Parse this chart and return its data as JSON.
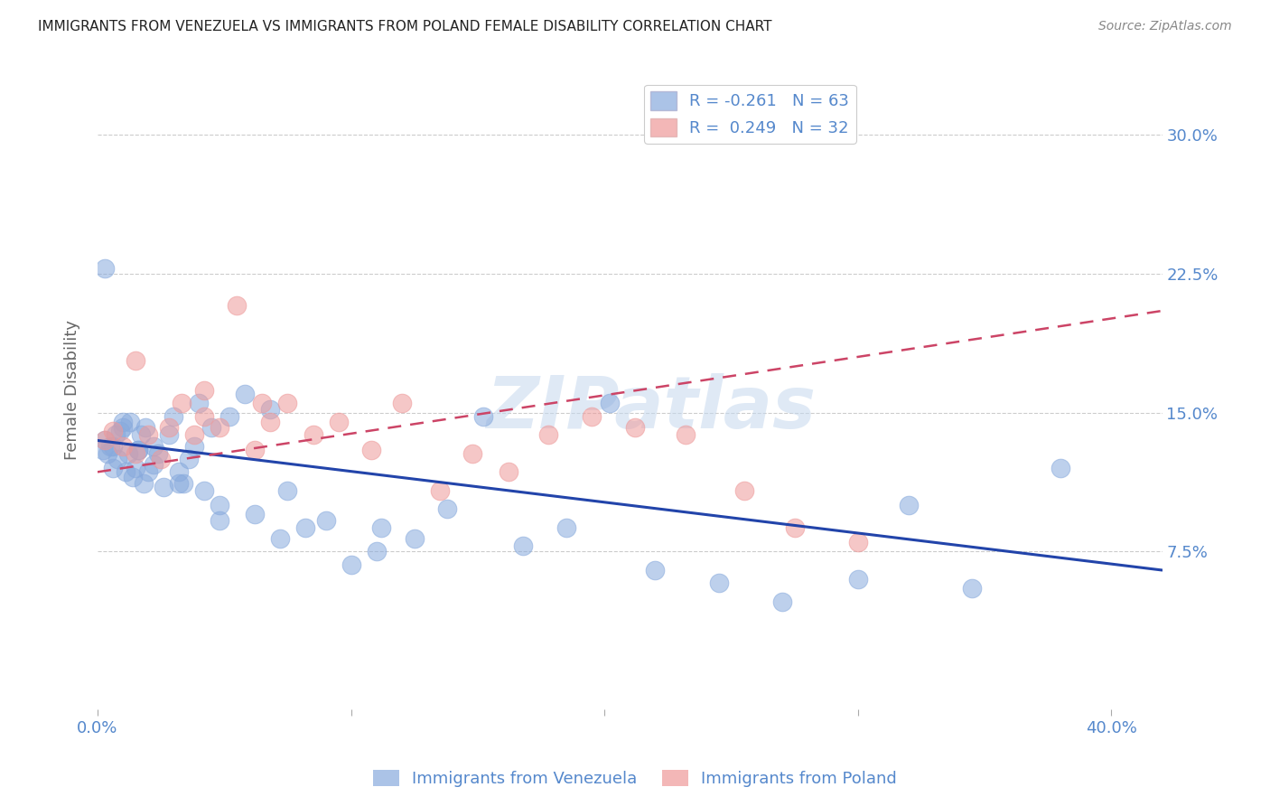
{
  "title": "IMMIGRANTS FROM VENEZUELA VS IMMIGRANTS FROM POLAND FEMALE DISABILITY CORRELATION CHART",
  "source": "Source: ZipAtlas.com",
  "ylabel": "Female Disability",
  "ytick_labels": [
    "30.0%",
    "22.5%",
    "15.0%",
    "7.5%"
  ],
  "ytick_values": [
    0.3,
    0.225,
    0.15,
    0.075
  ],
  "xlim": [
    0.0,
    0.42
  ],
  "ylim": [
    -0.01,
    0.335
  ],
  "title_color": "#333333",
  "axis_tick_color": "#5588cc",
  "watermark": "ZIPatlas",
  "venezuela_color": "#88aadd",
  "poland_color": "#ee9999",
  "venezuela_line_color": "#2244aa",
  "poland_line_color": "#cc4466",
  "venezuela_line_x": [
    0.0,
    0.42
  ],
  "venezuela_line_y": [
    0.135,
    0.065
  ],
  "poland_line_x": [
    0.0,
    0.42
  ],
  "poland_line_y": [
    0.118,
    0.205
  ],
  "scatter_size": 220,
  "scatter_alpha": 0.55,
  "legend_R1": "-0.261",
  "legend_N1": "63",
  "legend_R2": "0.249",
  "legend_N2": "32",
  "venezuela_x": [
    0.002,
    0.003,
    0.004,
    0.005,
    0.006,
    0.007,
    0.008,
    0.009,
    0.01,
    0.011,
    0.012,
    0.013,
    0.014,
    0.015,
    0.016,
    0.017,
    0.018,
    0.019,
    0.02,
    0.022,
    0.024,
    0.026,
    0.028,
    0.03,
    0.032,
    0.034,
    0.036,
    0.038,
    0.04,
    0.042,
    0.045,
    0.048,
    0.052,
    0.058,
    0.062,
    0.068,
    0.075,
    0.082,
    0.09,
    0.1,
    0.112,
    0.125,
    0.138,
    0.152,
    0.168,
    0.185,
    0.202,
    0.22,
    0.245,
    0.27,
    0.3,
    0.32,
    0.345,
    0.38,
    0.003,
    0.006,
    0.01,
    0.016,
    0.022,
    0.032,
    0.048,
    0.072,
    0.11
  ],
  "venezuela_y": [
    0.13,
    0.135,
    0.128,
    0.132,
    0.12,
    0.138,
    0.125,
    0.14,
    0.142,
    0.118,
    0.128,
    0.145,
    0.115,
    0.12,
    0.13,
    0.138,
    0.112,
    0.142,
    0.118,
    0.132,
    0.128,
    0.11,
    0.138,
    0.148,
    0.118,
    0.112,
    0.125,
    0.132,
    0.155,
    0.108,
    0.142,
    0.1,
    0.148,
    0.16,
    0.095,
    0.152,
    0.108,
    0.088,
    0.092,
    0.068,
    0.088,
    0.082,
    0.098,
    0.148,
    0.078,
    0.088,
    0.155,
    0.065,
    0.058,
    0.048,
    0.06,
    0.1,
    0.055,
    0.12,
    0.228,
    0.132,
    0.145,
    0.13,
    0.122,
    0.112,
    0.092,
    0.082,
    0.075
  ],
  "poland_x": [
    0.003,
    0.006,
    0.01,
    0.015,
    0.02,
    0.025,
    0.028,
    0.033,
    0.038,
    0.042,
    0.048,
    0.055,
    0.062,
    0.068,
    0.075,
    0.085,
    0.095,
    0.108,
    0.12,
    0.135,
    0.148,
    0.162,
    0.178,
    0.195,
    0.212,
    0.232,
    0.255,
    0.275,
    0.3,
    0.015,
    0.042,
    0.065
  ],
  "poland_y": [
    0.135,
    0.14,
    0.132,
    0.128,
    0.138,
    0.125,
    0.142,
    0.155,
    0.138,
    0.148,
    0.142,
    0.208,
    0.13,
    0.145,
    0.155,
    0.138,
    0.145,
    0.13,
    0.155,
    0.108,
    0.128,
    0.118,
    0.138,
    0.148,
    0.142,
    0.138,
    0.108,
    0.088,
    0.08,
    0.178,
    0.162,
    0.155
  ]
}
